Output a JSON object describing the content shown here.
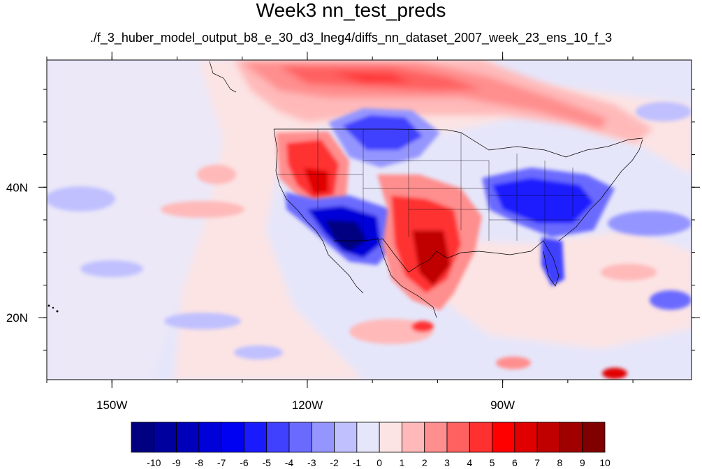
{
  "title": "Week3 nn_test_preds",
  "subtitle": "./f_3_huber_model_output_b8_e_30_d3_lneg4/diffs_nn_dataset_2007_week_23_ens_10_f_3",
  "map": {
    "extent": {
      "lon_min": -160,
      "lon_max": -61,
      "lat_min": 10.5,
      "lat_max": 59.5
    },
    "lon_ticks": [
      {
        "lon": -150,
        "label": "150W"
      },
      {
        "lon": -120,
        "label": "120W"
      },
      {
        "lon": -90,
        "label": "90W"
      }
    ],
    "lat_ticks": [
      {
        "lat": 40,
        "label": "40N"
      },
      {
        "lat": 20,
        "label": "20N"
      }
    ],
    "minor_lon_step": 10,
    "minor_lat_step": 5
  },
  "colorbar": {
    "labels": [
      "-10",
      "-9",
      "-8",
      "-7",
      "-6",
      "-5",
      "-4",
      "-3",
      "-2",
      "-1",
      "0",
      "1",
      "2",
      "3",
      "4",
      "5",
      "6",
      "7",
      "8",
      "9",
      "10"
    ],
    "colors": [
      "#000080",
      "#00009e",
      "#0000bb",
      "#0000d8",
      "#0000f2",
      "#1a1aff",
      "#4040ff",
      "#6a6aff",
      "#9595ff",
      "#c0c0ff",
      "#e6e6fa",
      "#fce4e4",
      "#ffb9b9",
      "#ff8e8e",
      "#ff6060",
      "#ff3030",
      "#ff0000",
      "#e00000",
      "#c00000",
      "#a00000",
      "#800000"
    ]
  }
}
